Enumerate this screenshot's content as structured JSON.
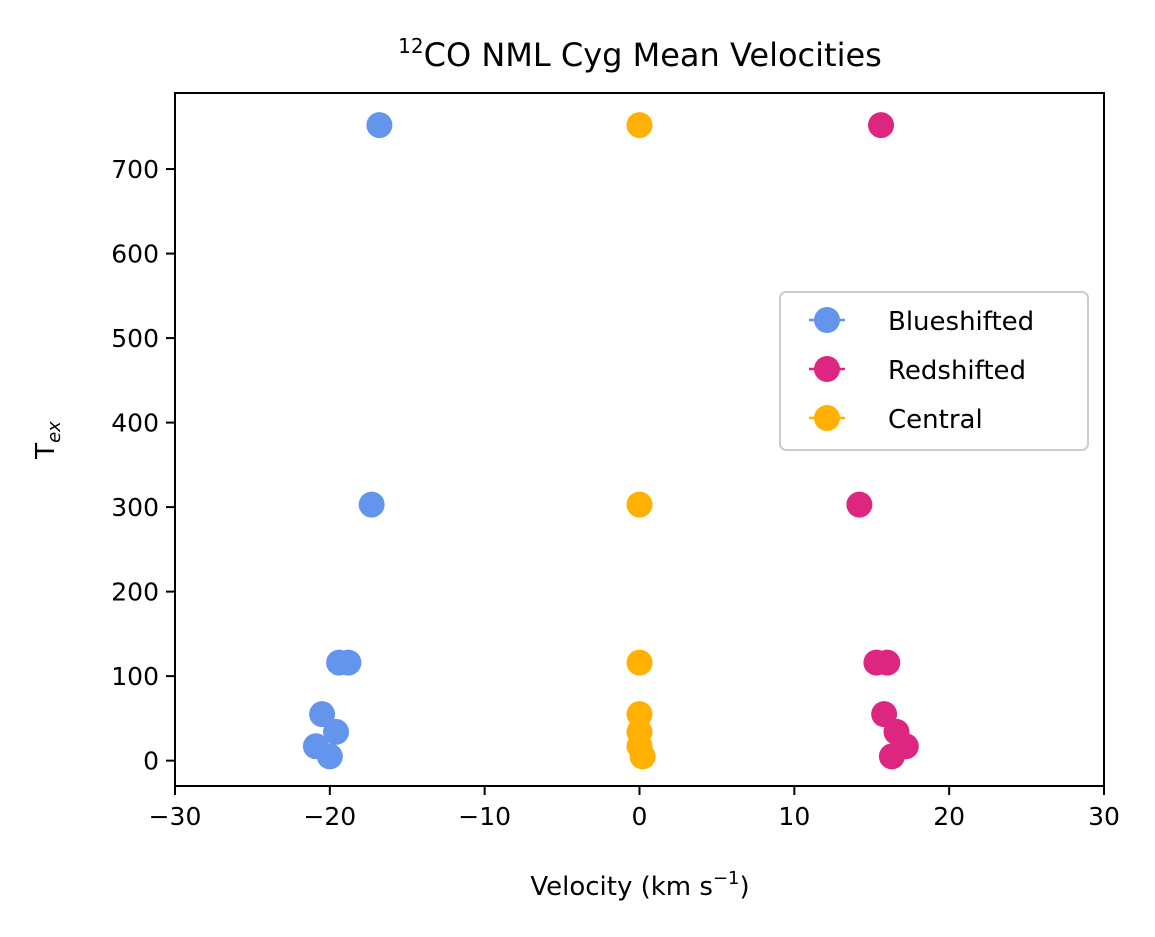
{
  "chart_data": {
    "type": "scatter",
    "title": {
      "sup": "12",
      "main": "CO NML Cyg Mean Velocities"
    },
    "xlabel": {
      "main": "Velocity (km s",
      "sup": "−1",
      "end": ")"
    },
    "ylabel": {
      "main": "T",
      "sub": "ex"
    },
    "xlim": [
      -30,
      30
    ],
    "ylim": [
      -30,
      790
    ],
    "x_ticks": [
      -30,
      -20,
      -10,
      0,
      10,
      20,
      30
    ],
    "x_tick_labels": [
      "−30",
      "−20",
      "−10",
      "0",
      "10",
      "20",
      "30"
    ],
    "y_ticks": [
      0,
      100,
      200,
      300,
      400,
      500,
      600,
      700
    ],
    "y_tick_labels": [
      "0",
      "100",
      "200",
      "300",
      "400",
      "500",
      "600",
      "700"
    ],
    "grid": false,
    "legend_position": "center-right",
    "series": [
      {
        "name": "Blueshifted",
        "color": "#6495ED",
        "points": [
          {
            "x": -16.8,
            "y": 752
          },
          {
            "x": -17.3,
            "y": 303
          },
          {
            "x": -18.8,
            "y": 116
          },
          {
            "x": -19.4,
            "y": 116
          },
          {
            "x": -20.5,
            "y": 55
          },
          {
            "x": -19.6,
            "y": 34
          },
          {
            "x": -20.9,
            "y": 17
          },
          {
            "x": -20.0,
            "y": 5
          }
        ]
      },
      {
        "name": "Redshifted",
        "color": "#DC267F",
        "points": [
          {
            "x": 15.6,
            "y": 752
          },
          {
            "x": 14.2,
            "y": 303
          },
          {
            "x": 16.0,
            "y": 116
          },
          {
            "x": 15.3,
            "y": 116
          },
          {
            "x": 15.8,
            "y": 55
          },
          {
            "x": 16.6,
            "y": 34
          },
          {
            "x": 17.2,
            "y": 17
          },
          {
            "x": 16.3,
            "y": 5
          }
        ]
      },
      {
        "name": "Central",
        "color": "#FFB000",
        "points": [
          {
            "x": 0.0,
            "y": 752
          },
          {
            "x": 0.0,
            "y": 303
          },
          {
            "x": 0.0,
            "y": 116
          },
          {
            "x": 0.0,
            "y": 55
          },
          {
            "x": 0.0,
            "y": 34
          },
          {
            "x": 0.0,
            "y": 17
          },
          {
            "x": 0.2,
            "y": 5
          }
        ]
      }
    ]
  }
}
